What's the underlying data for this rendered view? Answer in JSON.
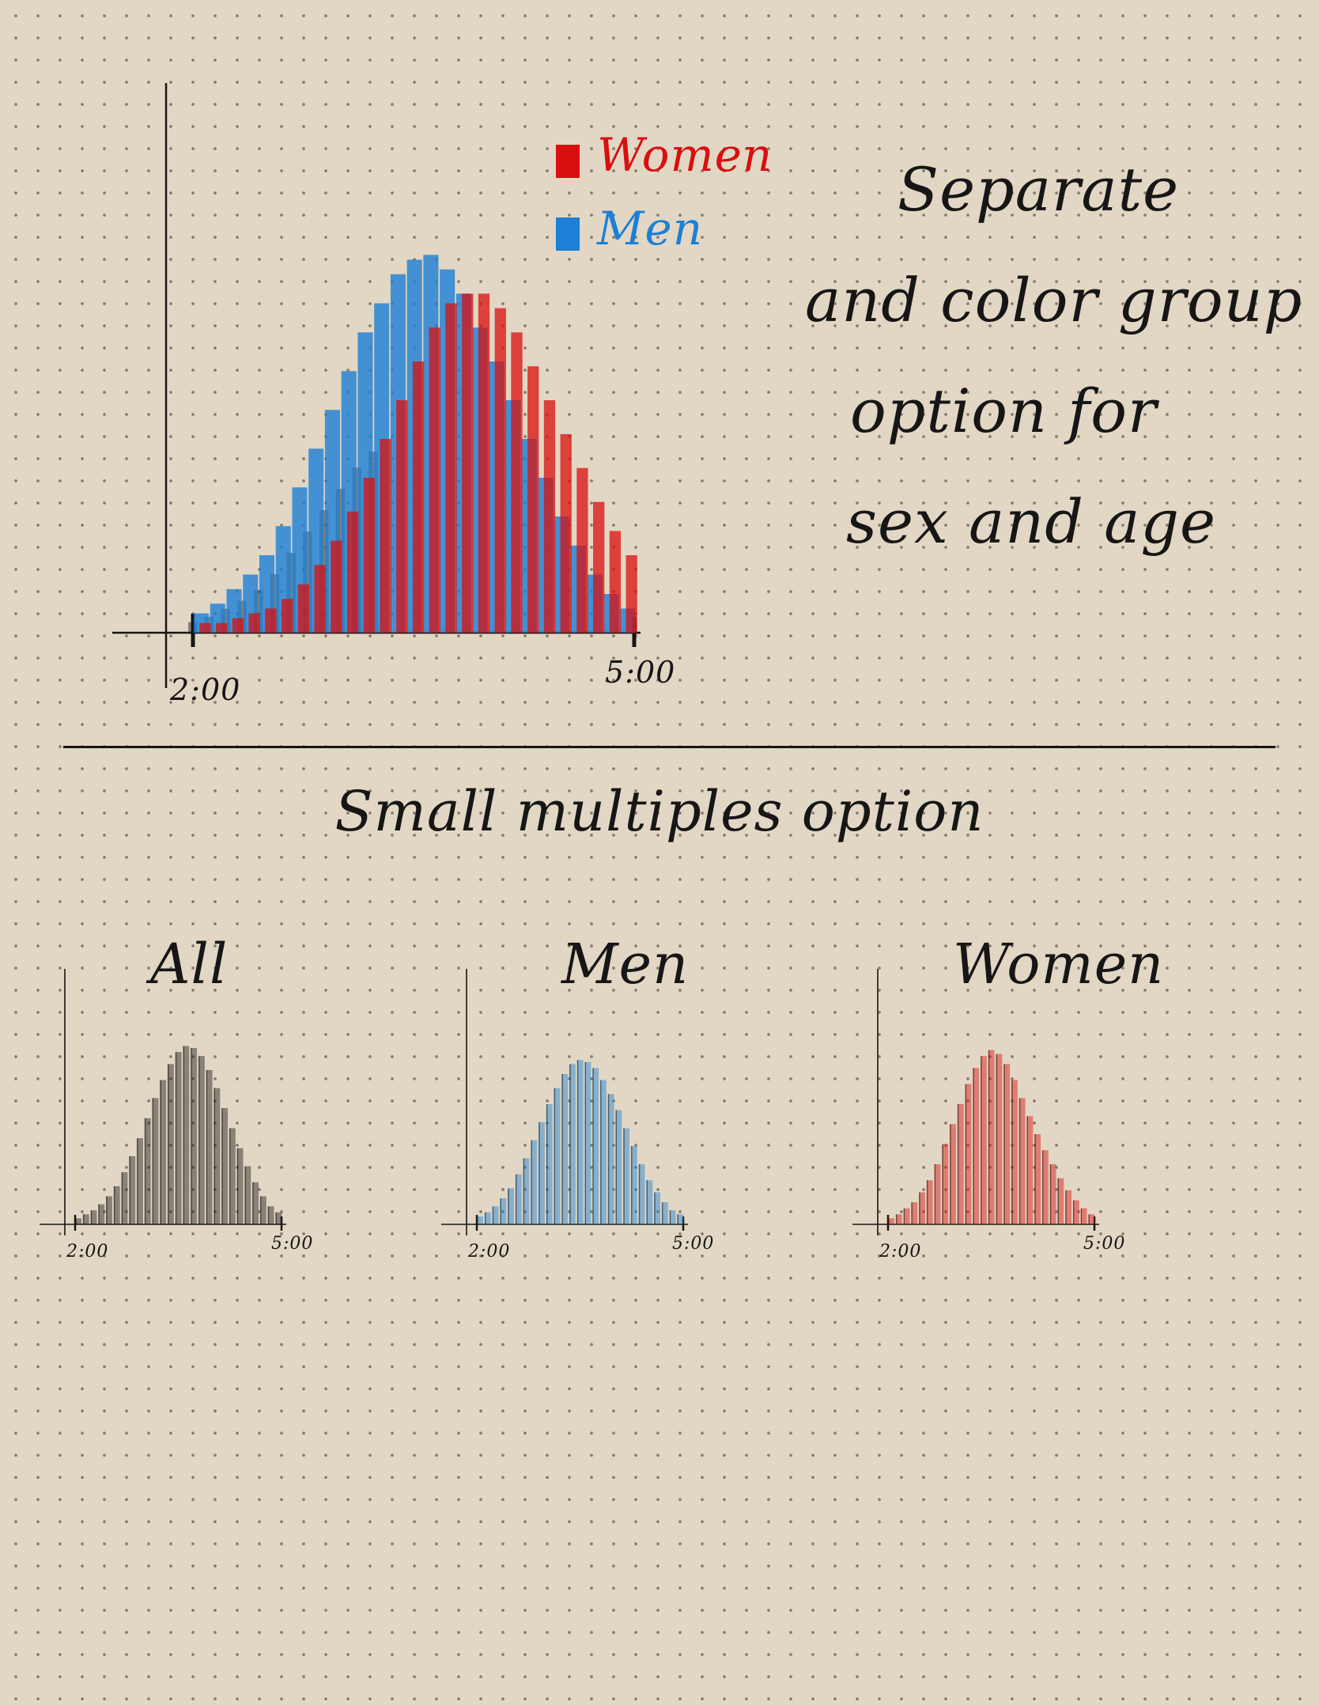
{
  "notes": {
    "side_note_lines": [
      "Separate",
      "and color group",
      "option for",
      "sex and age"
    ],
    "section_title": "Small multiples option"
  },
  "colors": {
    "women": "#d90f0f",
    "men": "#1b80d6",
    "overlap": "#1a1a1a",
    "ink": "#161616"
  },
  "chart_data": [
    {
      "type": "bar",
      "variant": "overlaid",
      "x_tick_labels": [
        "2:00",
        "5:00"
      ],
      "legend": {
        "placement": "top-right",
        "entries": [
          "Women",
          "Men"
        ]
      },
      "series": [
        {
          "name": "Men",
          "color": "#1b80d6",
          "values": [
            4,
            6,
            9,
            12,
            16,
            22,
            30,
            38,
            46,
            54,
            62,
            68,
            74,
            77,
            78,
            75,
            70,
            63,
            56,
            48,
            40,
            32,
            24,
            18,
            12,
            8,
            5
          ]
        },
        {
          "name": "Women",
          "color": "#d90f0f",
          "values": [
            2,
            2,
            3,
            4,
            5,
            7,
            10,
            14,
            19,
            25,
            32,
            40,
            48,
            56,
            63,
            68,
            70,
            70,
            67,
            62,
            55,
            48,
            41,
            34,
            27,
            21,
            16
          ]
        }
      ]
    },
    {
      "type": "bar",
      "title": "All",
      "color": "#1a1a1a",
      "x_tick_labels": [
        "2:00",
        "5:00"
      ],
      "values": [
        3,
        5,
        7,
        10,
        14,
        19,
        26,
        34,
        43,
        53,
        63,
        72,
        80,
        86,
        89,
        88,
        84,
        77,
        68,
        58,
        48,
        38,
        29,
        21,
        14,
        9,
        6
      ]
    },
    {
      "type": "bar",
      "title": "Men",
      "color": "#1b80d6",
      "x_tick_labels": [
        "2:00",
        "5:00"
      ],
      "values": [
        4,
        6,
        9,
        13,
        18,
        25,
        33,
        42,
        51,
        60,
        68,
        75,
        80,
        82,
        81,
        78,
        72,
        65,
        57,
        48,
        39,
        30,
        22,
        16,
        11,
        7,
        5
      ]
    },
    {
      "type": "bar",
      "title": "Women",
      "color": "#d90f0f",
      "x_tick_labels": [
        "2:00",
        "5:00"
      ],
      "values": [
        3,
        5,
        8,
        11,
        16,
        22,
        30,
        40,
        50,
        60,
        70,
        78,
        84,
        87,
        85,
        80,
        72,
        63,
        54,
        45,
        37,
        30,
        23,
        17,
        12,
        8,
        5
      ]
    }
  ]
}
